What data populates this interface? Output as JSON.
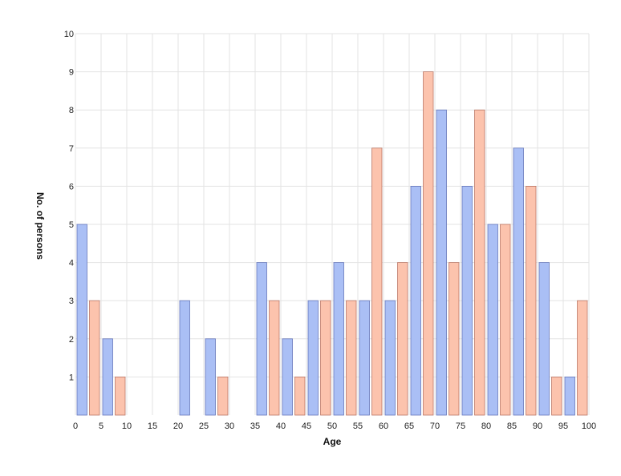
{
  "chart_data": {
    "type": "bar",
    "xlabel": "Age",
    "ylabel": "No. of persons",
    "xlim": [
      0,
      100
    ],
    "ylim": [
      0,
      10
    ],
    "x_ticks": [
      0,
      5,
      10,
      15,
      20,
      25,
      30,
      35,
      40,
      45,
      50,
      55,
      60,
      65,
      70,
      75,
      80,
      85,
      90,
      95,
      100
    ],
    "y_ticks": [
      1,
      2,
      3,
      4,
      5,
      6,
      7,
      8,
      9,
      10
    ],
    "grid": true,
    "legend": "none",
    "bin_width": 5,
    "series": [
      {
        "color": "#aabff5",
        "stroke": "#6677bb",
        "values": [
          5,
          2,
          0,
          0,
          3,
          2,
          0,
          4,
          2,
          3,
          4,
          3,
          3,
          6,
          8,
          6,
          5,
          7,
          4,
          1
        ]
      },
      {
        "color": "#fcc3ad",
        "stroke": "#bb7766",
        "values": [
          3,
          1,
          0,
          0,
          0,
          1,
          0,
          3,
          1,
          3,
          3,
          7,
          4,
          9,
          4,
          8,
          5,
          6,
          1,
          3
        ]
      }
    ]
  }
}
